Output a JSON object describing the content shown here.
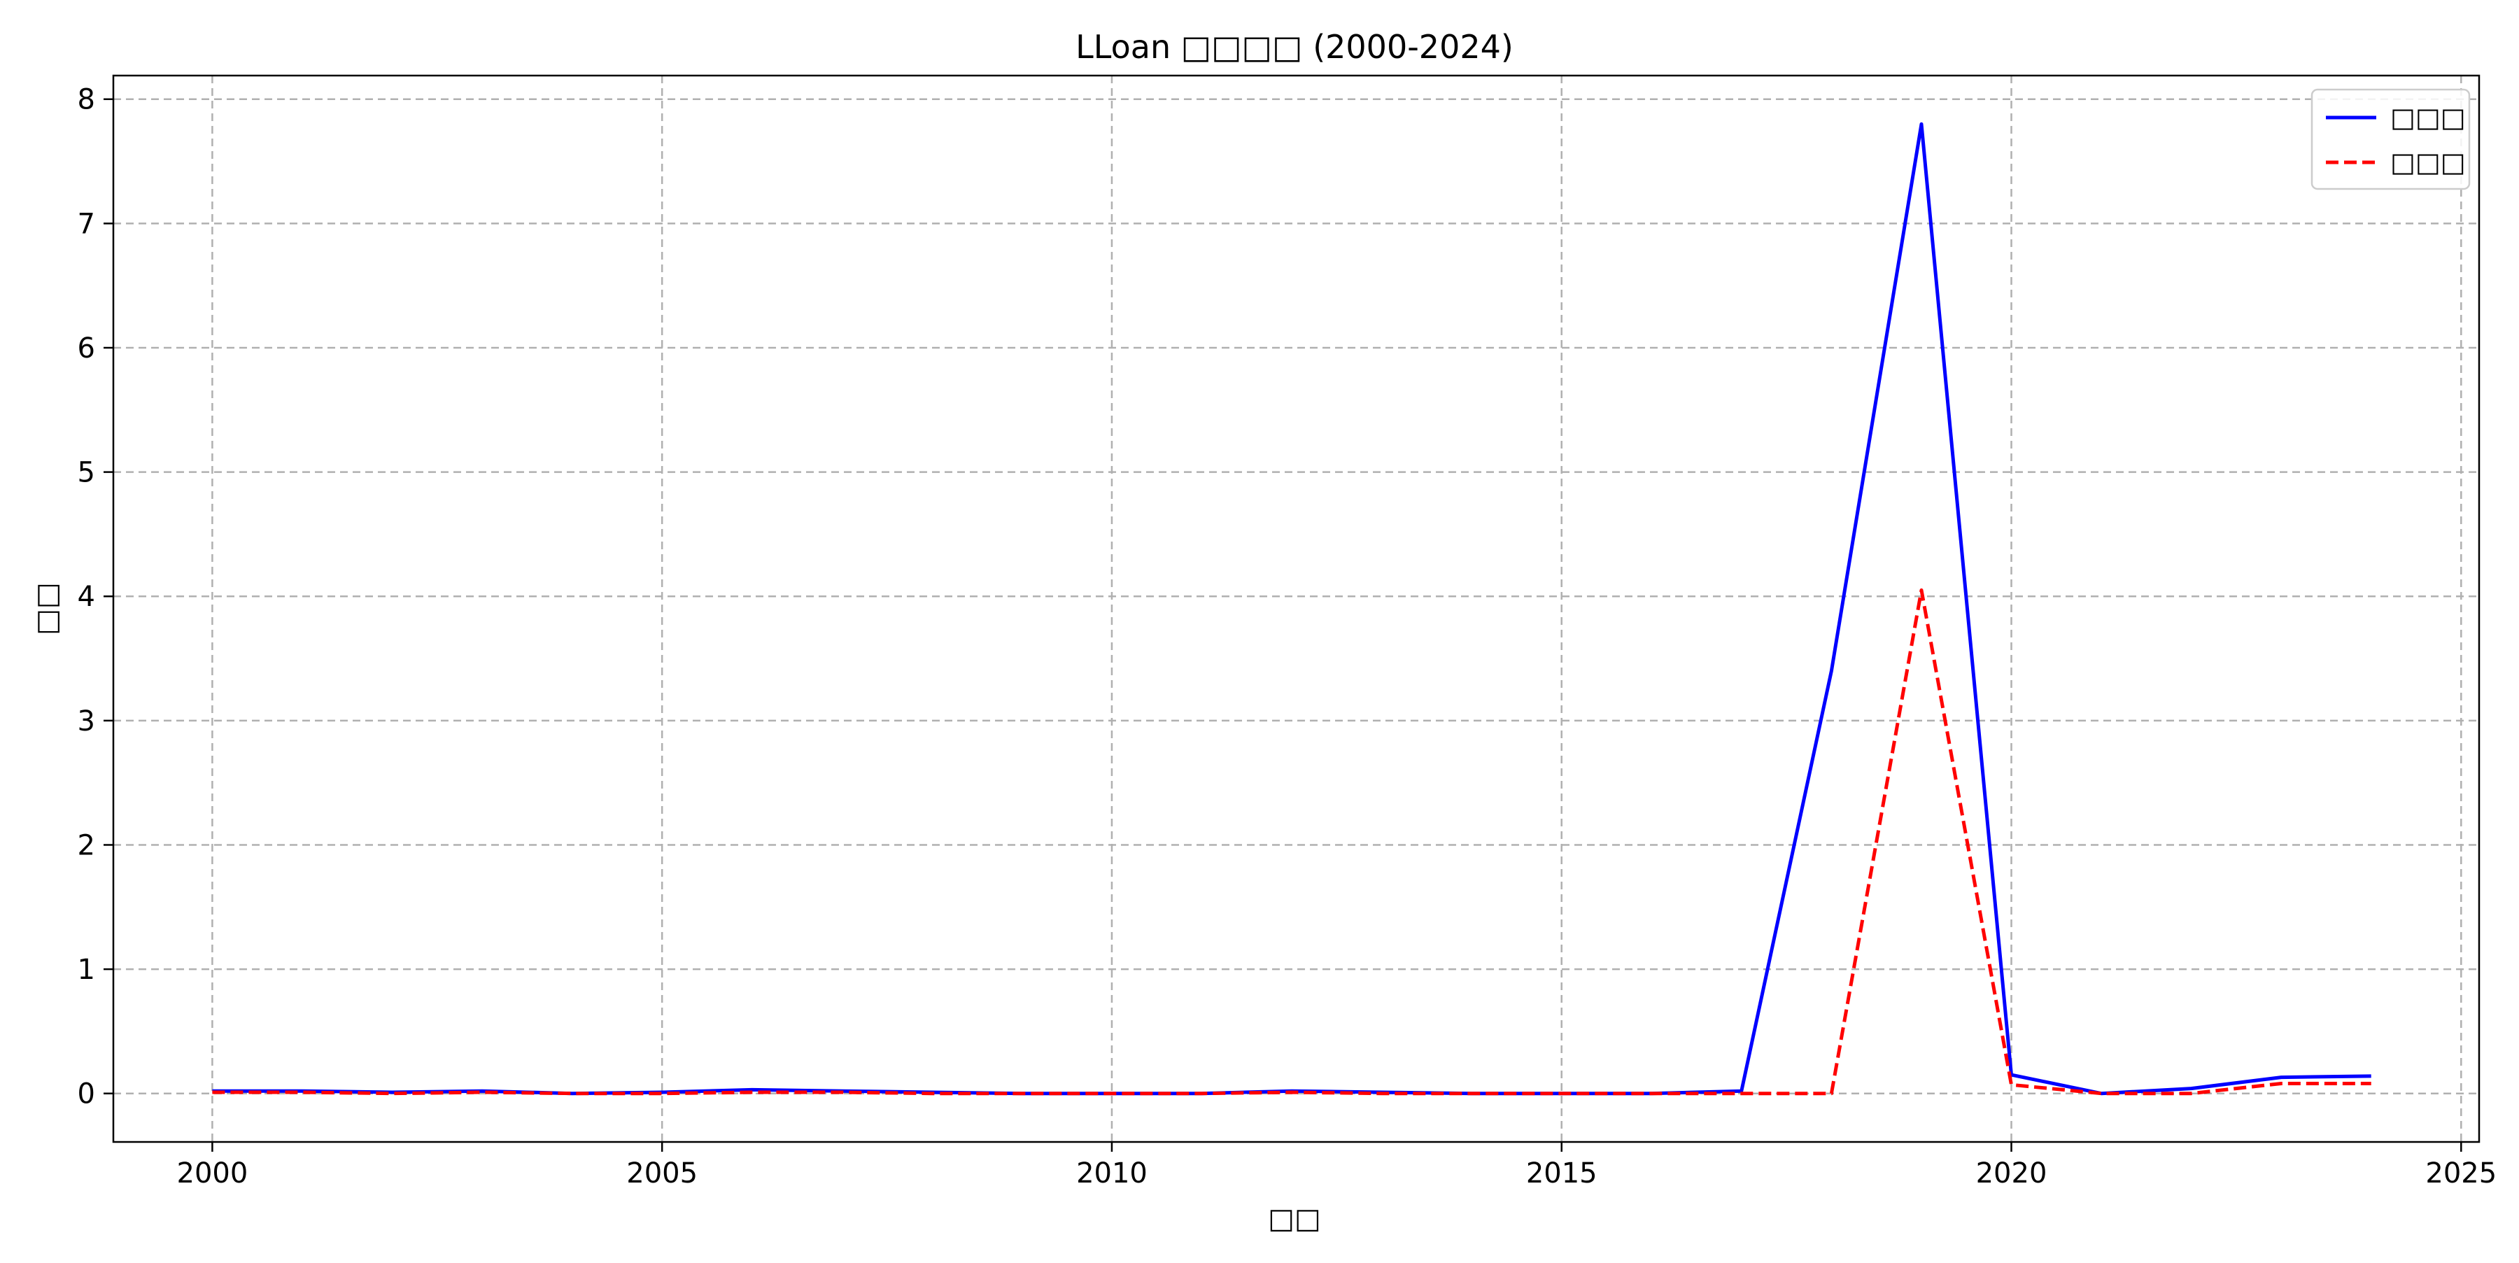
{
  "chart_data": {
    "type": "line",
    "title": "LLoan □□□□ (2000-2024)",
    "xlabel": "□□",
    "ylabel": "□□",
    "xlim": [
      1998.9,
      2025.2
    ],
    "ylim": [
      -0.39,
      8.19
    ],
    "xticks": [
      2000,
      2005,
      2010,
      2015,
      2020,
      2025
    ],
    "yticks": [
      0,
      1,
      2,
      3,
      4,
      5,
      6,
      7,
      8
    ],
    "grid": true,
    "legend": "top-right",
    "x": [
      2000,
      2001,
      2002,
      2003,
      2004,
      2005,
      2006,
      2007,
      2008,
      2009,
      2010,
      2011,
      2012,
      2013,
      2014,
      2015,
      2016,
      2017,
      2018,
      2019,
      2020,
      2021,
      2022,
      2023,
      2024
    ],
    "series": [
      {
        "name": "□□□",
        "color": "#0000ff",
        "style": "solid",
        "values": [
          0.02,
          0.02,
          0.01,
          0.02,
          0.0,
          0.01,
          0.03,
          0.02,
          0.01,
          0.0,
          0.0,
          0.0,
          0.02,
          0.01,
          0.0,
          0.0,
          0.0,
          0.02,
          3.4,
          7.8,
          0.15,
          0.0,
          0.04,
          0.13,
          0.14
        ]
      },
      {
        "name": "□□□",
        "color": "#ff0000",
        "style": "dashed",
        "values": [
          0.01,
          0.01,
          0.0,
          0.01,
          0.0,
          0.0,
          0.01,
          0.01,
          0.0,
          0.0,
          0.0,
          0.0,
          0.01,
          0.0,
          0.0,
          0.0,
          0.0,
          0.0,
          0.0,
          4.05,
          0.07,
          0.0,
          0.0,
          0.08,
          0.08
        ]
      }
    ]
  }
}
